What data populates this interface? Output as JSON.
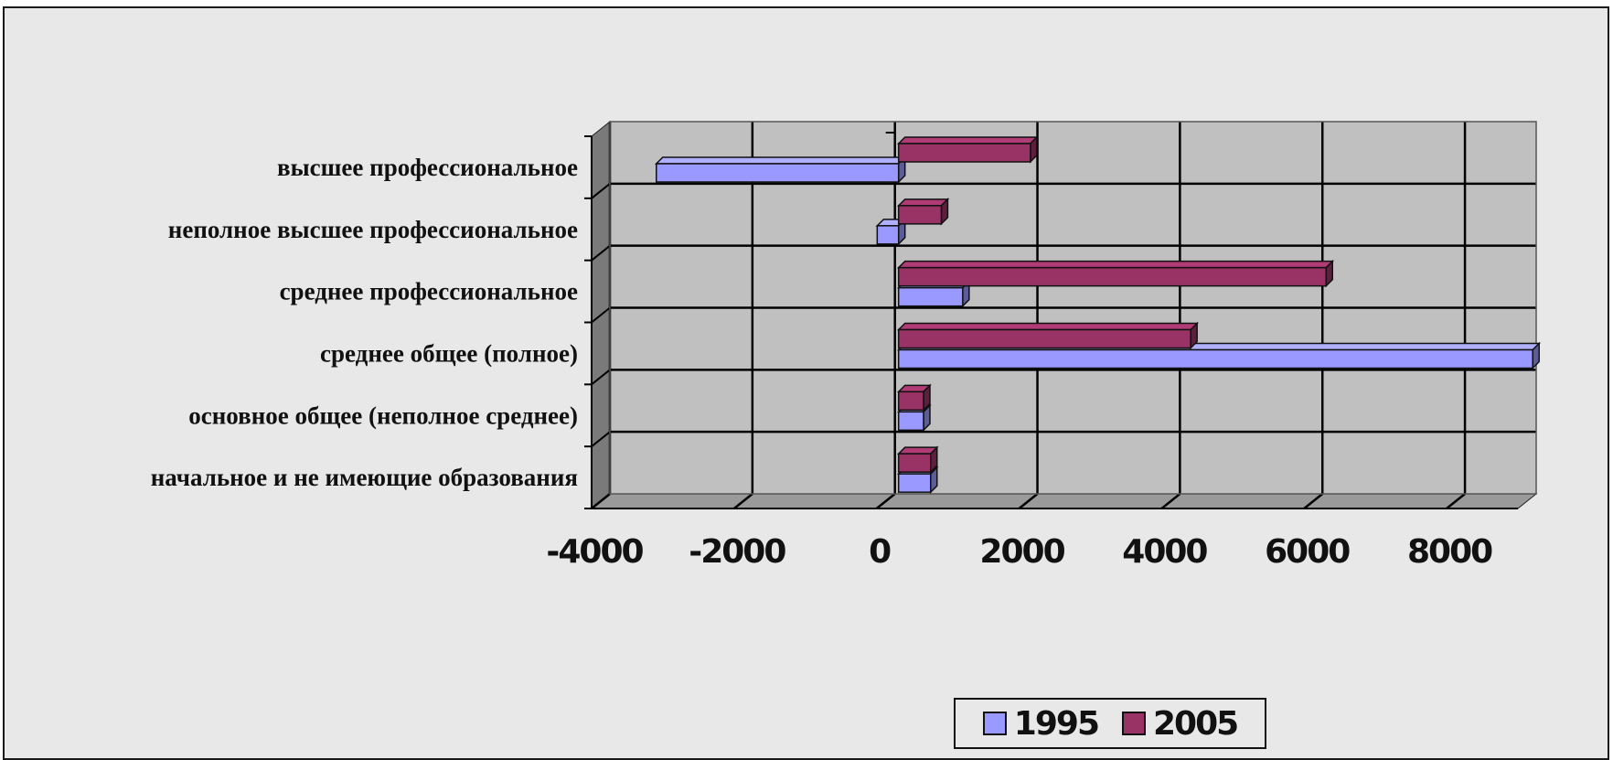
{
  "chart_data": {
    "type": "bar",
    "orientation": "horizontal",
    "style": "3d",
    "categories": [
      "высшее профессиональное",
      "неполное высшее профессиональное",
      "среднее профессиональное",
      "среднее общее (полное)",
      "основное общее (неполное среднее)",
      "начальное и не имеющие образования"
    ],
    "series": [
      {
        "name": "1995",
        "color": "#9999ff",
        "values": [
          -3400,
          -300,
          900,
          8900,
          350,
          450
        ]
      },
      {
        "name": "2005",
        "color": "#993366",
        "values": [
          1850,
          600,
          6000,
          4100,
          350,
          450
        ]
      }
    ],
    "xlim": [
      -4000,
      9000
    ],
    "xticks": [
      -4000,
      -2000,
      0,
      2000,
      4000,
      6000,
      8000
    ],
    "xtick_labels": [
      "-4000",
      "-2000",
      "0",
      "2000",
      "4000",
      "6000",
      "8000"
    ],
    "grid": true,
    "plot_background": "#c0c0c0",
    "legend_position": "bottom"
  }
}
